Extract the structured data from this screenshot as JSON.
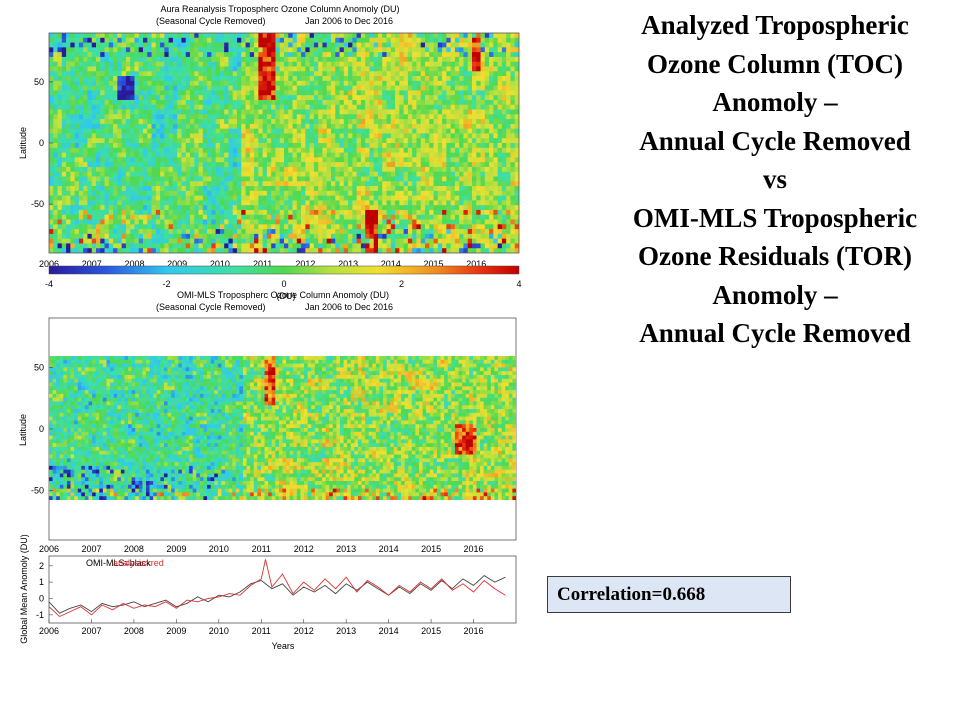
{
  "slide": {
    "title_lines": [
      "Analyzed Tropospheric",
      "Ozone Column (TOC)",
      "Anomoly –",
      "Annual Cycle Removed",
      "vs",
      "OMI-MLS Tropospheric",
      "Ozone Residuals (TOR)",
      "Anomoly –",
      "Annual Cycle Removed"
    ],
    "correlation_label": "Correlation=0.668"
  },
  "chart_data": [
    {
      "type": "heatmap",
      "title_line1": "Aura Reanalysis  Tropospherc Ozone Column Anomoly (DU)",
      "title_line2_left": "(Seasonal Cycle Removed)",
      "title_line2_right": "Jan 2006 to Dec 2016",
      "ylabel": "Latitude",
      "yticks": [
        "50",
        "0",
        "-50"
      ],
      "ylim": [
        -90,
        90
      ],
      "xticks": [
        "2006",
        "2007",
        "2008",
        "2009",
        "2010",
        "2011",
        "2012",
        "2013",
        "2014",
        "2015",
        "2016"
      ],
      "xlim": [
        2006,
        2017
      ],
      "colorbar": {
        "ticks": [
          "-4",
          "-2",
          "0",
          "2",
          "4"
        ],
        "label": "(DU)",
        "range": [
          -4,
          4
        ]
      }
    },
    {
      "type": "heatmap",
      "title_line1": "OMI-MLS  Tropospherc Ozone Column Anomoly (DU)",
      "title_line2_left": "(Seasonal Cycle Removed)",
      "title_line2_right": "Jan 2006 to Dec 2016",
      "ylabel": "Latitude",
      "yticks": [
        "50",
        "0",
        "-50"
      ],
      "ylim": [
        -90,
        90
      ],
      "data_lat_range": [
        -60,
        60
      ],
      "xticks": [
        "2006",
        "2007",
        "2008",
        "2009",
        "2010",
        "2011",
        "2012",
        "2013",
        "2014",
        "2015",
        "2016"
      ],
      "xlim": [
        2006,
        2017
      ]
    },
    {
      "type": "line",
      "ylabel": "Global Mean Anomoly (DU)",
      "xlabel": "Years",
      "legend_text": "OMI-MLS=black",
      "legend_text_overlap": "analysis=red",
      "yticks": [
        "2",
        "1",
        "0",
        "-1"
      ],
      "ylim": [
        -1.5,
        2.6
      ],
      "xticks": [
        "2006",
        "2007",
        "2008",
        "2009",
        "2010",
        "2011",
        "2012",
        "2013",
        "2014",
        "2015",
        "2016"
      ],
      "xlim": [
        2006,
        2017
      ],
      "series": [
        {
          "color": "#444444",
          "x": [
            2006.0,
            2006.25,
            2006.5,
            2006.75,
            2007.0,
            2007.25,
            2007.5,
            2007.75,
            2008.0,
            2008.25,
            2008.5,
            2008.75,
            2009.0,
            2009.25,
            2009.5,
            2009.75,
            2010.0,
            2010.25,
            2010.5,
            2010.75,
            2011.0,
            2011.25,
            2011.5,
            2011.75,
            2012.0,
            2012.25,
            2012.5,
            2012.75,
            2013.0,
            2013.25,
            2013.5,
            2013.75,
            2014.0,
            2014.25,
            2014.5,
            2014.75,
            2015.0,
            2015.25,
            2015.5,
            2015.75,
            2016.0,
            2016.25,
            2016.5,
            2016.75
          ],
          "values": [
            -0.2,
            -0.9,
            -0.6,
            -0.4,
            -0.8,
            -0.3,
            -0.5,
            -0.4,
            -0.2,
            -0.5,
            -0.3,
            -0.1,
            -0.5,
            -0.3,
            0.1,
            -0.2,
            0.2,
            0.1,
            0.4,
            0.9,
            1.1,
            0.6,
            0.9,
            0.2,
            0.7,
            0.4,
            0.8,
            0.3,
            0.9,
            0.5,
            1.0,
            0.6,
            0.2,
            0.7,
            0.3,
            0.9,
            0.5,
            1.1,
            0.6,
            1.2,
            0.8,
            1.4,
            1.0,
            1.3
          ]
        },
        {
          "color": "#e03030",
          "x": [
            2006.0,
            2006.25,
            2006.5,
            2006.75,
            2007.0,
            2007.25,
            2007.5,
            2007.75,
            2008.0,
            2008.25,
            2008.5,
            2008.75,
            2009.0,
            2009.25,
            2009.5,
            2009.75,
            2010.0,
            2010.25,
            2010.5,
            2010.75,
            2011.0,
            2011.1,
            2011.25,
            2011.5,
            2011.75,
            2012.0,
            2012.25,
            2012.5,
            2012.75,
            2013.0,
            2013.25,
            2013.5,
            2013.75,
            2014.0,
            2014.25,
            2014.5,
            2014.75,
            2015.0,
            2015.25,
            2015.5,
            2015.75,
            2016.0,
            2016.25,
            2016.5,
            2016.75
          ],
          "values": [
            -0.5,
            -1.1,
            -0.8,
            -0.5,
            -1.0,
            -0.4,
            -0.7,
            -0.3,
            -0.6,
            -0.4,
            -0.5,
            -0.2,
            -0.6,
            -0.1,
            -0.2,
            0.0,
            0.1,
            0.3,
            0.2,
            0.8,
            1.2,
            2.4,
            0.7,
            1.5,
            0.3,
            1.0,
            0.5,
            1.2,
            0.6,
            1.3,
            0.4,
            1.1,
            0.7,
            0.2,
            0.8,
            0.4,
            1.0,
            0.6,
            1.2,
            0.5,
            0.9,
            0.4,
            1.1,
            0.6,
            0.2
          ]
        }
      ]
    }
  ]
}
